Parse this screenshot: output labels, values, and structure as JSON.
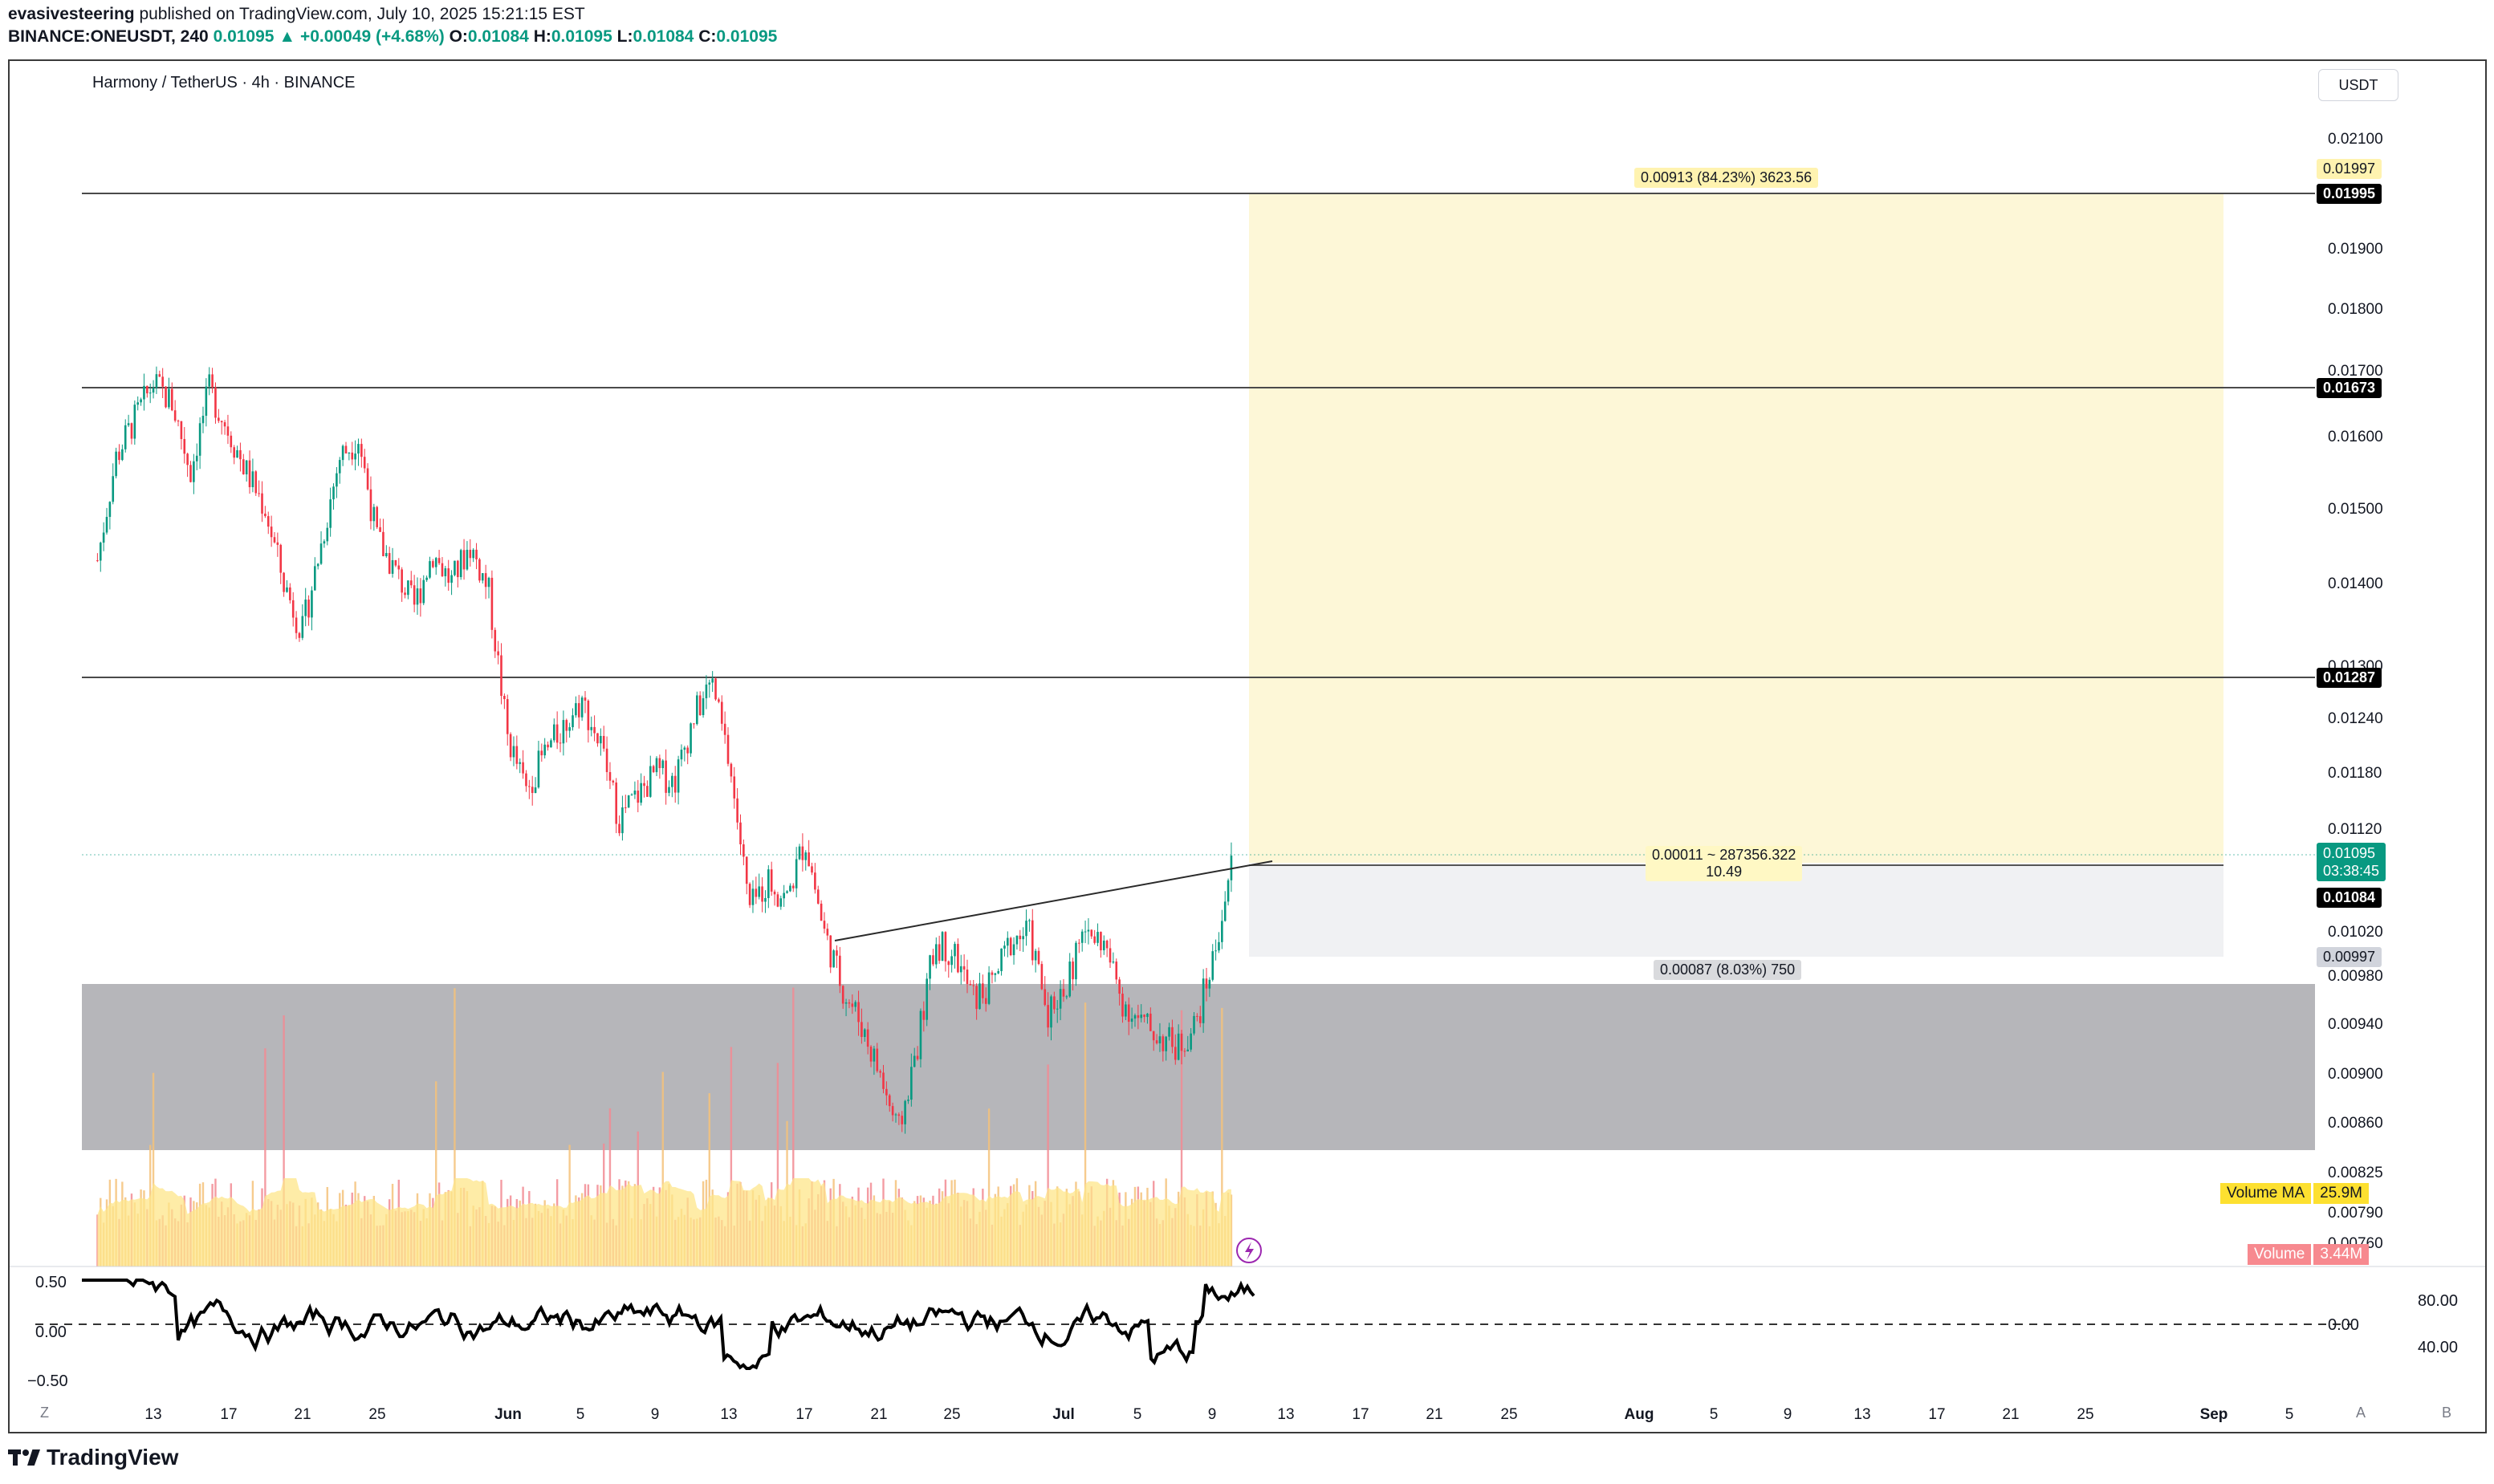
{
  "header": {
    "author": "evasivesteering",
    "published_text": "published on TradingView.com, July 10, 2025 15:21:15 EST",
    "symbol": "BINANCE:ONEUSDT, 240",
    "last": "0.01095",
    "change": "▲ +0.00049 (+4.68%)",
    "o_label": "O:",
    "o": "0.01084",
    "h_label": "H:",
    "h": "0.01095",
    "l_label": "L:",
    "l": "0.01084",
    "c_label": "C:",
    "c": "0.01095"
  },
  "chart_title": "Harmony / TetherUS · 4h · BINANCE",
  "currency_button": "USDT",
  "price_axis": [
    "0.02100",
    "0.01900",
    "0.01800",
    "0.01700",
    "0.01600",
    "0.01500",
    "0.01400",
    "0.01300",
    "0.01240",
    "0.01180",
    "0.01120",
    "0.01020",
    "0.00980",
    "0.00940",
    "0.00900",
    "0.00860",
    "0.00825",
    "0.00790",
    "0.00760"
  ],
  "price_tags": {
    "target_faint": "0.01997",
    "level_1": "0.01995",
    "level_2": "0.01673",
    "level_3": "0.01287",
    "last_price": "0.01095",
    "countdown": "03:38:45",
    "entry": "0.01084",
    "stop": "0.00997"
  },
  "position_labels": {
    "target": "0.00913 (84.23%) 3623.56",
    "entry_line1": "0.00011 ~ 287356.322",
    "entry_line2": "10.49",
    "stop": "0.00087 (8.03%) 750"
  },
  "volume_ma": {
    "label": "Volume MA",
    "value": "25.9M"
  },
  "volume": {
    "label": "Volume",
    "value": "3.44M"
  },
  "oscillator_axis": {
    "top": "0.50",
    "mid": "0.00",
    "bot": "−0.50",
    "right_top": "80.00",
    "right_mid": "0.00",
    "right_bot": "40.00"
  },
  "time_axis": [
    "13",
    "17",
    "21",
    "25",
    "Jun",
    "5",
    "9",
    "13",
    "17",
    "21",
    "25",
    "Jul",
    "5",
    "9",
    "13",
    "17",
    "21",
    "25",
    "Aug",
    "5",
    "9",
    "13",
    "17",
    "21",
    "25",
    "Sep",
    "5"
  ],
  "axis_buttons": {
    "left": "Z",
    "auto": "A",
    "b": "B"
  },
  "footer_logo": "TradingView",
  "colors": {
    "up": "#089981",
    "down": "#f23645",
    "target_zone": "#fdf7d7",
    "stop_zone": "#f0f1f3",
    "demand_zone": "#b6b6ba"
  },
  "chart_data": {
    "type": "candlestick",
    "symbol": "ONEUSDT",
    "interval": "4h",
    "horizontal_levels": [
      0.01995,
      0.01673,
      0.01287
    ],
    "demand_zone": [
      0.0084,
      0.00965
    ],
    "trendline": [
      {
        "x": "Jun 17",
        "y": 0.01005
      },
      {
        "x": "Jul 10",
        "y": 0.01097
      }
    ],
    "long_position": {
      "entry": 0.01084,
      "target": 0.01997,
      "stop": 0.00997,
      "reward_pct": 84.23,
      "risk_pct": 8.03
    },
    "close_path": [
      {
        "x": "May 10",
        "y": 0.0143
      },
      {
        "x": "May 11",
        "y": 0.0157
      },
      {
        "x": "May 13",
        "y": 0.0168
      },
      {
        "x": "May 14",
        "y": 0.0165
      },
      {
        "x": "May 15",
        "y": 0.0155
      },
      {
        "x": "May 16",
        "y": 0.0167
      },
      {
        "x": "May 18",
        "y": 0.0155
      },
      {
        "x": "May 19",
        "y": 0.015
      },
      {
        "x": "May 20",
        "y": 0.014
      },
      {
        "x": "May 21",
        "y": 0.0134
      },
      {
        "x": "May 22",
        "y": 0.0145
      },
      {
        "x": "May 23",
        "y": 0.0157
      },
      {
        "x": "May 24",
        "y": 0.016
      },
      {
        "x": "May 25",
        "y": 0.0146
      },
      {
        "x": "May 27",
        "y": 0.0137
      },
      {
        "x": "May 28",
        "y": 0.0144
      },
      {
        "x": "May 29",
        "y": 0.014
      },
      {
        "x": "May 30",
        "y": 0.0145
      },
      {
        "x": "May 31",
        "y": 0.0139
      },
      {
        "x": "Jun 1",
        "y": 0.0122
      },
      {
        "x": "Jun 2",
        "y": 0.0116
      },
      {
        "x": "Jun 3",
        "y": 0.012
      },
      {
        "x": "Jun 5",
        "y": 0.0126
      },
      {
        "x": "Jun 6",
        "y": 0.0121
      },
      {
        "x": "Jun 7",
        "y": 0.0113
      },
      {
        "x": "Jun 9",
        "y": 0.0118
      },
      {
        "x": "Jun 10",
        "y": 0.0117
      },
      {
        "x": "Jun 11",
        "y": 0.0124
      },
      {
        "x": "Jun 12",
        "y": 0.0128
      },
      {
        "x": "Jun 13",
        "y": 0.0118
      },
      {
        "x": "Jun 14",
        "y": 0.0104
      },
      {
        "x": "Jun 15",
        "y": 0.0107
      },
      {
        "x": "Jun 16",
        "y": 0.0105
      },
      {
        "x": "Jun 17",
        "y": 0.0111
      },
      {
        "x": "Jun 18",
        "y": 0.0102
      },
      {
        "x": "Jun 19",
        "y": 0.0097
      },
      {
        "x": "Jun 20",
        "y": 0.0094
      },
      {
        "x": "Jun 21",
        "y": 0.009
      },
      {
        "x": "Jun 22",
        "y": 0.0085
      },
      {
        "x": "Jun 23",
        "y": 0.0092
      },
      {
        "x": "Jun 24",
        "y": 0.0101
      },
      {
        "x": "Jun 25",
        "y": 0.01
      },
      {
        "x": "Jun 26",
        "y": 0.0096
      },
      {
        "x": "Jun 27",
        "y": 0.0097
      },
      {
        "x": "Jun 28",
        "y": 0.0101
      },
      {
        "x": "Jun 29",
        "y": 0.0102
      },
      {
        "x": "Jun 30",
        "y": 0.0095
      },
      {
        "x": "Jul 1",
        "y": 0.0097
      },
      {
        "x": "Jul 2",
        "y": 0.0102
      },
      {
        "x": "Jul 3",
        "y": 0.0101
      },
      {
        "x": "Jul 4",
        "y": 0.0096
      },
      {
        "x": "Jul 5",
        "y": 0.0094
      },
      {
        "x": "Jul 6",
        "y": 0.0093
      },
      {
        "x": "Jul 7",
        "y": 0.0092
      },
      {
        "x": "Jul 8",
        "y": 0.0094
      },
      {
        "x": "Jul 9",
        "y": 0.01
      },
      {
        "x": "Jul 10",
        "y": 0.01095
      }
    ]
  }
}
